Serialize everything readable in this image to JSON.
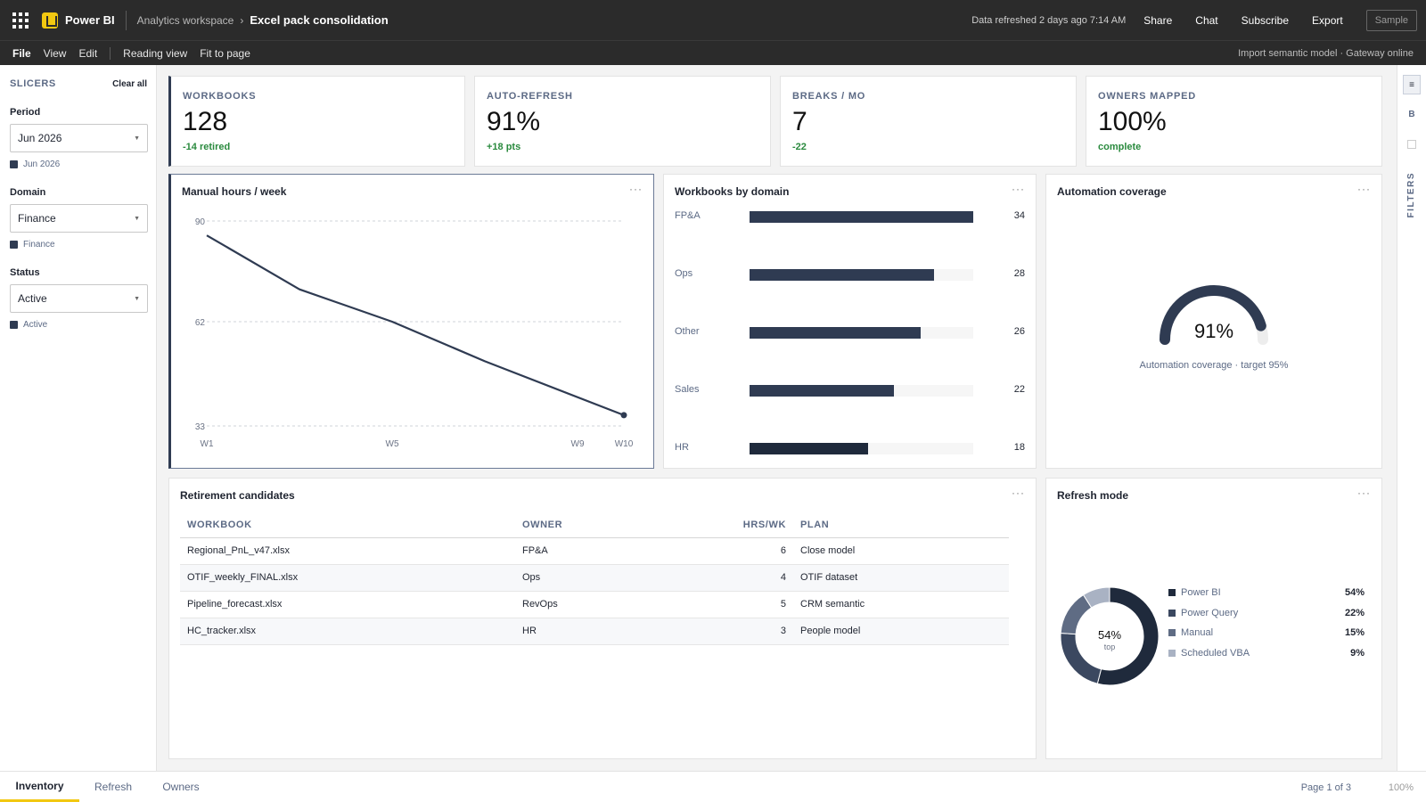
{
  "header": {
    "app_name": "Power BI",
    "breadcrumb_workspace": "Analytics workspace",
    "report_name": "Excel pack consolidation",
    "refreshed": "Data refreshed 2 days ago 7:14 AM",
    "actions": [
      "Share",
      "Chat",
      "Subscribe",
      "Export"
    ],
    "sample_label": "Sample"
  },
  "menu": {
    "items": [
      "File",
      "View",
      "Edit"
    ],
    "reading_view": "Reading view",
    "fit_to_page": "Fit to page",
    "status": "Import semantic model · Gateway online"
  },
  "slicers": {
    "title": "SLICERS",
    "clear_all": "Clear all",
    "items": [
      {
        "label": "Period",
        "value": "Jun 2026",
        "chip": "Jun 2026"
      },
      {
        "label": "Domain",
        "value": "Finance",
        "chip": "Finance"
      },
      {
        "label": "Status",
        "value": "Active",
        "chip": "Active"
      }
    ]
  },
  "kpis": [
    {
      "label": "WORKBOOKS",
      "value": "128",
      "delta": "-14 retired"
    },
    {
      "label": "AUTO-REFRESH",
      "value": "91%",
      "delta": "+18 pts"
    },
    {
      "label": "BREAKS / MO",
      "value": "7",
      "delta": "-22"
    },
    {
      "label": "OWNERS MAPPED",
      "value": "100%",
      "delta": "complete"
    }
  ],
  "visuals": {
    "line_title": "Manual hours / week",
    "bars_title": "Workbooks by domain",
    "gauge_title": "Automation coverage",
    "table_title": "Retirement candidates",
    "donut_title": "Refresh mode",
    "more": "···"
  },
  "chart_data": [
    {
      "type": "line",
      "title": "Manual hours / week",
      "x": [
        "W1",
        "W3",
        "W5",
        "W7",
        "W10"
      ],
      "y": [
        86,
        71,
        62,
        51,
        36
      ],
      "x_ticks": [
        "W1",
        "W5",
        "W9",
        "W10"
      ],
      "y_ticks": [
        "90",
        "62",
        "33"
      ],
      "ylim": [
        33,
        90
      ],
      "grid": true
    },
    {
      "type": "bar",
      "title": "Workbooks by domain",
      "categories": [
        "FP&A",
        "Ops",
        "Other",
        "Sales",
        "HR"
      ],
      "values": [
        34,
        28,
        26,
        22,
        18
      ],
      "xlim": [
        0,
        34
      ]
    },
    {
      "type": "pie",
      "title": "Refresh mode",
      "categories": [
        "Power BI",
        "Power Query",
        "Manual",
        "Scheduled VBA"
      ],
      "values": [
        54,
        22,
        15,
        9
      ],
      "labels": [
        "54%",
        "22%",
        "15%",
        "9%"
      ],
      "center_value": "54%",
      "center_sub": "top",
      "colors": [
        "#1f2a3c",
        "#3b4860",
        "#5f6c84",
        "#a9b2c3"
      ]
    }
  ],
  "gauge": {
    "value": 91,
    "label": "91%",
    "caption": "Automation coverage · target 95%"
  },
  "table": {
    "columns": [
      "WORKBOOK",
      "OWNER",
      "HRS/WK",
      "PLAN"
    ],
    "rows": [
      [
        "Regional_PnL_v47.xlsx",
        "FP&A",
        "6",
        "Close model"
      ],
      [
        "OTIF_weekly_FINAL.xlsx",
        "Ops",
        "4",
        "OTIF dataset"
      ],
      [
        "Pipeline_forecast.xlsx",
        "RevOps",
        "5",
        "CRM semantic"
      ],
      [
        "HC_tracker.xlsx",
        "HR",
        "3",
        "People model"
      ]
    ]
  },
  "rail": {
    "btn1": "≡",
    "btn2": "B",
    "filters": "FILTERS"
  },
  "tabs": {
    "items": [
      "Inventory",
      "Refresh",
      "Owners"
    ],
    "page": "Page 1 of 3",
    "zoom": "100%"
  }
}
